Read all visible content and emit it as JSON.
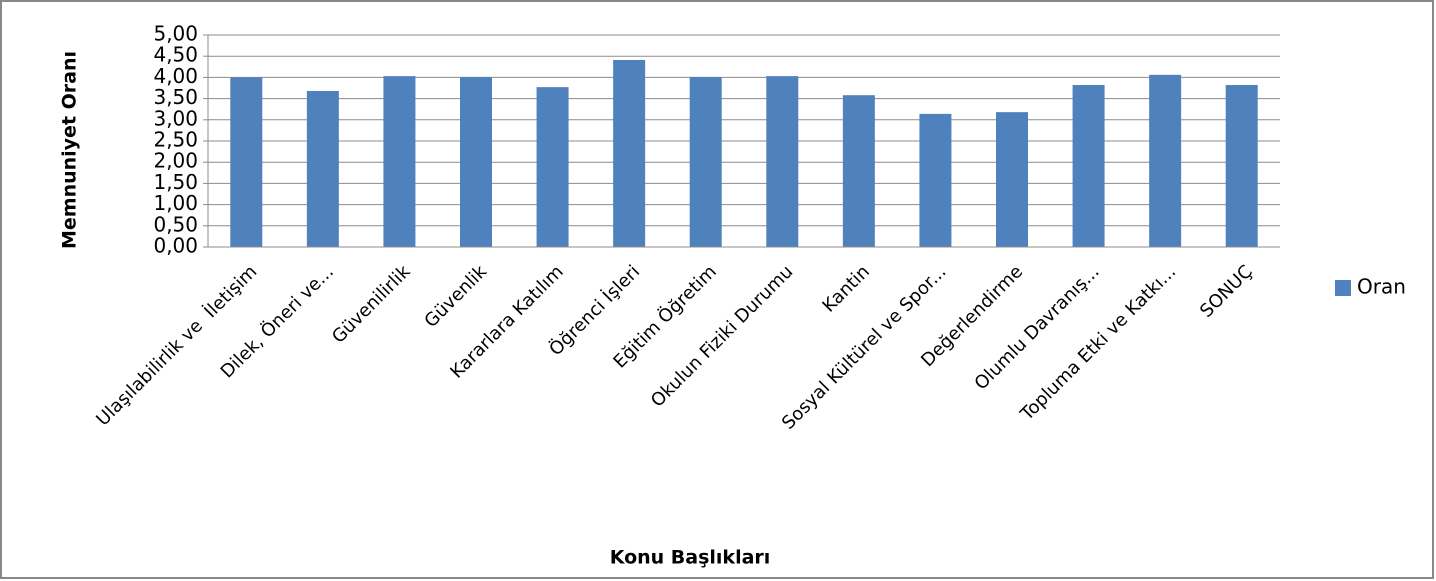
{
  "chart_data": {
    "type": "bar",
    "xlabel": "Konu Başlıkları",
    "ylabel": "Memnuniyet Oranı",
    "categories": [
      "Ulaşılabilirlik ve  İletişim",
      "Dilek, Öneri ve...",
      "Güvenilirlik",
      "Güvenlik",
      "Kararlara Katılım",
      "Öğrenci İşleri",
      "Eğitim Öğretim",
      "Okulun Fiziki Durumu",
      "Kantin",
      "Sosyal Kültürel ve Spor...",
      "Değerlendirme",
      "Olumlu Davranış...",
      "Topluma Etki ve Katkı...",
      "SONUÇ"
    ],
    "series": [
      {
        "name": "Oran",
        "color": "#4f81bd",
        "values": [
          4.0,
          3.68,
          4.03,
          4.01,
          3.77,
          4.41,
          4.01,
          4.03,
          3.58,
          3.14,
          3.18,
          3.82,
          4.06,
          3.82
        ]
      }
    ],
    "ylim": [
      0,
      5
    ],
    "yticks": [
      {
        "value": 0,
        "label": "0,00"
      },
      {
        "value": 0.5,
        "label": "0,50"
      },
      {
        "value": 1,
        "label": "1,00"
      },
      {
        "value": 1.5,
        "label": "1,50"
      },
      {
        "value": 2,
        "label": "2,00"
      },
      {
        "value": 2.5,
        "label": "2,50"
      },
      {
        "value": 3,
        "label": "3,00"
      },
      {
        "value": 3.5,
        "label": "3,50"
      },
      {
        "value": 4,
        "label": "4,00"
      },
      {
        "value": 4.5,
        "label": "4,50"
      },
      {
        "value": 5,
        "label": "5,00"
      }
    ],
    "grid": true,
    "legend": "right"
  }
}
